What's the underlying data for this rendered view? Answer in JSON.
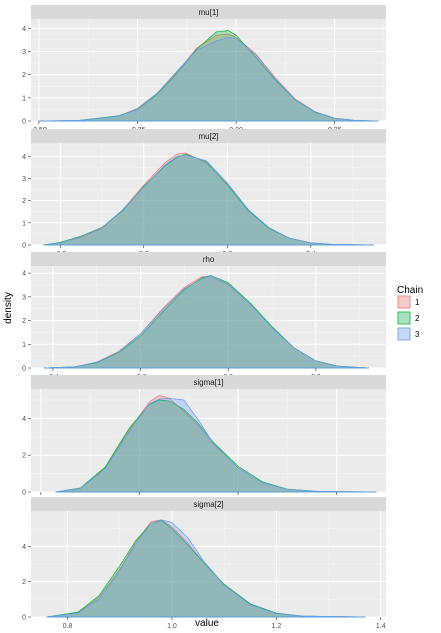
{
  "chart_data": {
    "type": "area",
    "xlabel": "value",
    "ylabel": "density",
    "legend": {
      "title": "Chain",
      "placement": "right",
      "entries": [
        {
          "label": "1",
          "color": "#F8766D"
        },
        {
          "label": "2",
          "color": "#00BA38"
        },
        {
          "label": "3",
          "color": "#619CFF"
        }
      ]
    },
    "panels": [
      {
        "title": "mu[1]",
        "xlim": [
          -0.52,
          0.38
        ],
        "ylim": [
          0,
          4.4
        ],
        "xticks": [
          -0.5,
          -0.25,
          0,
          0.25
        ],
        "xtick_labels": [
          "-0.50",
          "-0.25",
          "0.00",
          "0.25"
        ],
        "yticks": [
          0,
          1,
          2,
          3,
          4
        ],
        "series": [
          {
            "name": "1",
            "color": "#F8766D",
            "x": [
              -0.5,
              -0.4,
              -0.3,
              -0.25,
              -0.2,
              -0.15,
              -0.1,
              -0.05,
              -0.02,
              0.0,
              0.05,
              0.1,
              0.15,
              0.2,
              0.25,
              0.3,
              0.36
            ],
            "y": [
              0,
              0.02,
              0.2,
              0.55,
              1.2,
              2.1,
              3.15,
              3.7,
              3.75,
              3.6,
              2.9,
              1.85,
              0.95,
              0.4,
              0.12,
              0.03,
              0
            ]
          },
          {
            "name": "2",
            "color": "#00BA38",
            "x": [
              -0.5,
              -0.4,
              -0.3,
              -0.25,
              -0.2,
              -0.15,
              -0.1,
              -0.05,
              -0.02,
              0.0,
              0.05,
              0.1,
              0.15,
              0.2,
              0.25,
              0.3,
              0.36
            ],
            "y": [
              0,
              0.02,
              0.22,
              0.5,
              1.15,
              2.05,
              3.1,
              3.85,
              3.9,
              3.7,
              2.75,
              1.75,
              0.9,
              0.38,
              0.12,
              0.03,
              0
            ]
          },
          {
            "name": "3",
            "color": "#619CFF",
            "x": [
              -0.5,
              -0.4,
              -0.3,
              -0.25,
              -0.2,
              -0.15,
              -0.1,
              -0.05,
              -0.02,
              0.0,
              0.05,
              0.1,
              0.15,
              0.2,
              0.25,
              0.3,
              0.36
            ],
            "y": [
              0,
              0.02,
              0.2,
              0.52,
              1.2,
              2.15,
              3.05,
              3.45,
              3.6,
              3.55,
              2.85,
              1.8,
              0.92,
              0.4,
              0.12,
              0.03,
              0
            ]
          }
        ]
      },
      {
        "title": "mu[2]",
        "xlim": [
          -0.27,
          0.58
        ],
        "ylim": [
          0,
          4.6
        ],
        "xticks": [
          -0.2,
          0,
          0.2,
          0.4
        ],
        "xtick_labels": [
          "-0.2",
          "0.0",
          "0.2",
          "0.4"
        ],
        "yticks": [
          0,
          1,
          2,
          3,
          4
        ],
        "series": [
          {
            "name": "1",
            "color": "#F8766D",
            "x": [
              -0.24,
              -0.2,
              -0.15,
              -0.1,
              -0.05,
              0.0,
              0.05,
              0.08,
              0.1,
              0.15,
              0.2,
              0.25,
              0.3,
              0.35,
              0.4,
              0.45,
              0.55
            ],
            "y": [
              0,
              0.1,
              0.35,
              0.75,
              1.6,
              2.7,
              3.7,
              4.1,
              4.15,
              3.7,
              2.75,
              1.6,
              0.75,
              0.3,
              0.1,
              0.03,
              0
            ]
          },
          {
            "name": "2",
            "color": "#00BA38",
            "x": [
              -0.24,
              -0.2,
              -0.15,
              -0.1,
              -0.05,
              0.0,
              0.05,
              0.08,
              0.1,
              0.15,
              0.2,
              0.25,
              0.3,
              0.35,
              0.4,
              0.45,
              0.55
            ],
            "y": [
              0,
              0.12,
              0.4,
              0.8,
              1.55,
              2.65,
              3.55,
              3.95,
              4.1,
              3.75,
              2.7,
              1.55,
              0.75,
              0.3,
              0.1,
              0.03,
              0
            ]
          },
          {
            "name": "3",
            "color": "#619CFF",
            "x": [
              -0.24,
              -0.2,
              -0.15,
              -0.1,
              -0.05,
              0.0,
              0.05,
              0.08,
              0.1,
              0.15,
              0.2,
              0.25,
              0.3,
              0.35,
              0.4,
              0.45,
              0.55
            ],
            "y": [
              0,
              0.1,
              0.38,
              0.78,
              1.6,
              2.6,
              3.6,
              4.0,
              4.05,
              3.8,
              2.8,
              1.6,
              0.78,
              0.3,
              0.1,
              0.03,
              0
            ]
          }
        ]
      },
      {
        "title": "rho",
        "xlim": [
          -0.45,
          0.36
        ],
        "ylim": [
          0,
          4.3
        ],
        "xticks": [
          -0.4,
          -0.2,
          0,
          0.2
        ],
        "xtick_labels": [
          "-0.4",
          "-0.2",
          "0.0",
          "0.2"
        ],
        "yticks": [
          0,
          1,
          2,
          3,
          4
        ],
        "series": [
          {
            "name": "1",
            "color": "#F8766D",
            "x": [
              -0.42,
              -0.35,
              -0.3,
              -0.25,
              -0.2,
              -0.15,
              -0.1,
              -0.06,
              -0.04,
              0.0,
              0.05,
              0.1,
              0.15,
              0.2,
              0.25,
              0.32
            ],
            "y": [
              0,
              0.05,
              0.25,
              0.7,
              1.45,
              2.5,
              3.4,
              3.85,
              3.85,
              3.5,
              2.7,
              1.7,
              0.85,
              0.3,
              0.08,
              0
            ]
          },
          {
            "name": "2",
            "color": "#00BA38",
            "x": [
              -0.42,
              -0.35,
              -0.3,
              -0.25,
              -0.2,
              -0.15,
              -0.1,
              -0.06,
              -0.04,
              0.0,
              0.05,
              0.1,
              0.15,
              0.2,
              0.25,
              0.32
            ],
            "y": [
              0,
              0.05,
              0.22,
              0.65,
              1.35,
              2.35,
              3.3,
              3.8,
              3.9,
              3.6,
              2.75,
              1.75,
              0.85,
              0.3,
              0.08,
              0
            ]
          },
          {
            "name": "3",
            "color": "#619CFF",
            "x": [
              -0.42,
              -0.35,
              -0.3,
              -0.25,
              -0.2,
              -0.15,
              -0.1,
              -0.06,
              -0.04,
              0.0,
              0.05,
              0.1,
              0.15,
              0.2,
              0.25,
              0.32
            ],
            "y": [
              0,
              0.05,
              0.25,
              0.68,
              1.45,
              2.45,
              3.35,
              3.75,
              3.9,
              3.55,
              2.7,
              1.7,
              0.85,
              0.3,
              0.08,
              0
            ]
          }
        ]
      },
      {
        "title": "sigma[1]",
        "xlim": [
          0.78,
          1.5
        ],
        "ylim": [
          0,
          5.6
        ],
        "xticks": [
          0.8,
          1.0,
          1.2,
          1.4
        ],
        "xtick_labels": [
          "0.8",
          "1.0",
          "1.2",
          "1.4"
        ],
        "yticks": [
          0,
          2,
          4
        ],
        "series": [
          {
            "name": "1",
            "color": "#F8766D",
            "x": [
              0.83,
              0.88,
              0.93,
              0.98,
              1.02,
              1.04,
              1.06,
              1.09,
              1.12,
              1.15,
              1.2,
              1.25,
              1.3,
              1.36,
              1.48
            ],
            "y": [
              0,
              0.2,
              1.3,
              3.4,
              4.9,
              5.25,
              5.1,
              4.4,
              3.6,
              2.6,
              1.3,
              0.5,
              0.15,
              0.03,
              0
            ]
          },
          {
            "name": "2",
            "color": "#00BA38",
            "x": [
              0.83,
              0.88,
              0.93,
              0.98,
              1.02,
              1.04,
              1.06,
              1.09,
              1.12,
              1.15,
              1.2,
              1.25,
              1.3,
              1.36,
              1.48
            ],
            "y": [
              0,
              0.22,
              1.35,
              3.5,
              4.75,
              5.0,
              4.95,
              4.5,
              3.7,
              2.7,
              1.4,
              0.55,
              0.16,
              0.03,
              0
            ]
          },
          {
            "name": "3",
            "color": "#619CFF",
            "x": [
              0.83,
              0.88,
              0.93,
              0.98,
              1.02,
              1.04,
              1.06,
              1.09,
              1.12,
              1.15,
              1.2,
              1.25,
              1.3,
              1.36,
              1.48
            ],
            "y": [
              0,
              0.2,
              1.25,
              3.3,
              4.8,
              5.05,
              5.1,
              5.0,
              3.9,
              2.65,
              1.3,
              0.5,
              0.15,
              0.03,
              0
            ]
          }
        ]
      },
      {
        "title": "sigma[2]",
        "xlim": [
          0.73,
          1.41
        ],
        "ylim": [
          0,
          6.0
        ],
        "xticks": [
          0.8,
          1.0,
          1.2,
          1.4
        ],
        "xtick_labels": [
          "0.8",
          "1.0",
          "1.2",
          "1.4"
        ],
        "yticks": [
          0,
          2,
          4
        ],
        "series": [
          {
            "name": "1",
            "color": "#F8766D",
            "x": [
              0.76,
              0.82,
              0.86,
              0.9,
              0.93,
              0.96,
              0.98,
              1.0,
              1.03,
              1.06,
              1.1,
              1.15,
              1.2,
              1.25,
              1.37
            ],
            "y": [
              0,
              0.25,
              1.1,
              2.7,
              4.2,
              5.4,
              5.5,
              5.1,
              4.2,
              3.1,
              1.8,
              0.7,
              0.2,
              0.05,
              0
            ]
          },
          {
            "name": "2",
            "color": "#00BA38",
            "x": [
              0.76,
              0.82,
              0.86,
              0.9,
              0.93,
              0.96,
              0.98,
              1.0,
              1.03,
              1.06,
              1.1,
              1.15,
              1.2,
              1.25,
              1.37
            ],
            "y": [
              0,
              0.28,
              1.2,
              2.9,
              4.3,
              5.3,
              5.45,
              5.0,
              4.1,
              3.1,
              1.85,
              0.75,
              0.22,
              0.05,
              0
            ]
          },
          {
            "name": "3",
            "color": "#619CFF",
            "x": [
              0.76,
              0.82,
              0.86,
              0.9,
              0.93,
              0.96,
              0.98,
              1.0,
              1.03,
              1.06,
              1.1,
              1.15,
              1.2,
              1.25,
              1.37
            ],
            "y": [
              0,
              0.22,
              1.0,
              2.6,
              4.1,
              5.3,
              5.5,
              5.35,
              4.5,
              3.2,
              1.8,
              0.7,
              0.2,
              0.05,
              0
            ]
          }
        ]
      }
    ]
  }
}
